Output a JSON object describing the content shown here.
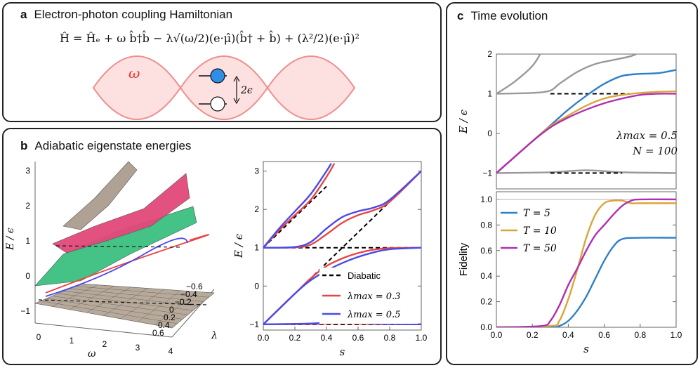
{
  "panel_a": {
    "letter": "a",
    "title": "Electron-photon coupling Hamiltonian",
    "equation": "Ĥ = Ĥₑ + ω b̂†b̂ − λ√(ω/2)(e·μ̂)(b̂† + b̂) + (λ²/2)(e·μ̂)²",
    "omega_label": "ω",
    "gap_label": "2ϵ",
    "colors": {
      "cavity_fill": "#fde0e0",
      "cavity_stroke": "#ee8f8f",
      "omega": "#e8322f",
      "excited": "#2f8fe6",
      "ground": "#ffffff"
    }
  },
  "panel_b": {
    "letter": "b",
    "title": "Adiabatic eigenstate energies",
    "surface_plot": {
      "zlabel": "E / ϵ",
      "xlabel": "ω",
      "ylabel": "λ",
      "z_ticks": [
        "3",
        "2",
        "1",
        "0",
        "−1"
      ],
      "x_ticks": [
        "0",
        "1",
        "2",
        "3",
        "4"
      ],
      "y_ticks": [
        "−0.6",
        "−0.4",
        "−0.2",
        "0",
        "0.2",
        "0.4",
        "0.6"
      ],
      "surface_colors": [
        "#b0a195",
        "#e2487a",
        "#3bbf7e",
        "#b8aa9b"
      ]
    },
    "legend": {
      "diabatic": "Diabatic",
      "lambda_03": "λmax = 0.3",
      "lambda_05": "λmax = 0.5"
    }
  },
  "panel_c": {
    "letter": "c",
    "title": "Time evolution",
    "annotation": {
      "lambda": "λmax = 0.5",
      "n": "N = 100"
    },
    "legend": {
      "t5": "T = 5",
      "t10": "T = 10",
      "t50": "T = 50"
    }
  },
  "chart_data": [
    {
      "id": "b-energies",
      "type": "line",
      "xlabel": "s",
      "ylabel": "E / ϵ",
      "xlim": [
        0,
        1
      ],
      "ylim": [
        -1.15,
        3.25
      ],
      "x_ticks": [
        0,
        0.2,
        0.4,
        0.6,
        0.8,
        1.0
      ],
      "y_ticks": [
        -1,
        0,
        1,
        2,
        3
      ],
      "series": [
        {
          "name": "Diabatic",
          "style": "dashed",
          "color": "#000000",
          "segments": [
            {
              "x": [
                0,
                1
              ],
              "y": [
                -1,
                3
              ]
            },
            {
              "x": [
                0,
                0.4
              ],
              "y": [
                1,
                2.6
              ]
            },
            {
              "x": [
                0,
                1
              ],
              "y": [
                1,
                1
              ]
            },
            {
              "x": [
                0,
                1
              ],
              "y": [
                -1,
                -1
              ]
            }
          ]
        },
        {
          "name": "λmax = 0.3",
          "color": "#e84545",
          "segments": [
            {
              "x": [
                0,
                0.2,
                0.3,
                0.4,
                0.5,
                0.6,
                0.7,
                0.8,
                1.0
              ],
              "y": [
                1,
                1.01,
                1.08,
                1.35,
                1.65,
                1.85,
                1.98,
                2.2,
                3.0
              ]
            },
            {
              "x": [
                0,
                0.2,
                0.3,
                0.4,
                0.5,
                0.6,
                0.7,
                0.8,
                1.0
              ],
              "y": [
                -1,
                -0.2,
                0.2,
                0.52,
                0.72,
                0.86,
                0.95,
                0.99,
                1.0
              ]
            },
            {
              "x": [
                0,
                0.1,
                0.2,
                0.3,
                0.4,
                0.45
              ],
              "y": [
                1,
                1.45,
                1.85,
                2.25,
                2.85,
                3.2
              ]
            },
            {
              "x": [
                0,
                0.3,
                0.5,
                0.7,
                1.0
              ],
              "y": [
                -1,
                -0.99,
                -0.97,
                -0.99,
                -1
              ]
            }
          ]
        },
        {
          "name": "λmax = 0.5",
          "color": "#4a4ae8",
          "segments": [
            {
              "x": [
                0,
                0.2,
                0.3,
                0.4,
                0.5,
                0.6,
                0.7,
                0.8,
                1.0
              ],
              "y": [
                1,
                1.02,
                1.15,
                1.5,
                1.8,
                1.95,
                2.05,
                2.25,
                3.0
              ]
            },
            {
              "x": [
                0,
                0.2,
                0.3,
                0.4,
                0.5,
                0.6,
                0.7,
                0.8,
                1.0
              ],
              "y": [
                -1,
                -0.2,
                0.15,
                0.4,
                0.6,
                0.76,
                0.88,
                0.96,
                1.0
              ]
            },
            {
              "x": [
                0,
                0.1,
                0.2,
                0.3,
                0.4,
                0.43
              ],
              "y": [
                1,
                1.5,
                1.95,
                2.4,
                3.0,
                3.2
              ]
            },
            {
              "x": [
                0,
                0.3,
                0.5,
                0.7,
                1.0
              ],
              "y": [
                -1,
                -0.98,
                -0.93,
                -0.98,
                -1
              ]
            }
          ]
        }
      ]
    },
    {
      "id": "c-energies",
      "type": "line",
      "ylabel": "E / ϵ",
      "xlim": [
        0,
        1
      ],
      "ylim": [
        -1.4,
        2
      ],
      "y_ticks": [
        -1,
        0,
        1,
        2
      ],
      "series": [
        {
          "name": "Eigenstates",
          "color": "#999999",
          "segments": [
            {
              "x": [
                0,
                0.1,
                0.2,
                0.25
              ],
              "y": [
                1,
                1.3,
                1.7,
                2.05
              ]
            },
            {
              "x": [
                0,
                0.2,
                0.3,
                0.35,
                0.45,
                0.55,
                0.65,
                0.75,
                0.8
              ],
              "y": [
                1,
                1.02,
                1.08,
                1.25,
                1.55,
                1.75,
                1.85,
                1.95,
                2.05
              ]
            },
            {
              "x": [
                0,
                0.3,
                0.5,
                0.7,
                1.0
              ],
              "y": [
                -1,
                -0.98,
                -0.93,
                -0.98,
                -1
              ]
            }
          ]
        },
        {
          "name": "Diabatic",
          "style": "dashed",
          "color": "#000000",
          "segments": [
            {
              "x": [
                0.3,
                0.75
              ],
              "y": [
                1,
                1
              ]
            },
            {
              "x": [
                0.3,
                0.7
              ],
              "y": [
                -1,
                -1
              ]
            }
          ]
        },
        {
          "name": "T = 5",
          "color": "#2f7fc9",
          "x": [
            0,
            0.2,
            0.3,
            0.4,
            0.5,
            0.6,
            0.7,
            0.8,
            0.9,
            1.0
          ],
          "y": [
            -1,
            -0.2,
            0.2,
            0.6,
            0.95,
            1.25,
            1.45,
            1.5,
            1.52,
            1.6
          ]
        },
        {
          "name": "T = 10",
          "color": "#d9a53a",
          "x": [
            0,
            0.2,
            0.3,
            0.4,
            0.5,
            0.6,
            0.7,
            0.8,
            0.9,
            1.0
          ],
          "y": [
            -1,
            -0.2,
            0.18,
            0.45,
            0.7,
            0.88,
            0.97,
            1.02,
            1.05,
            1.06
          ]
        },
        {
          "name": "T = 50",
          "color": "#b02fb0",
          "x": [
            0,
            0.2,
            0.3,
            0.4,
            0.5,
            0.6,
            0.7,
            0.8,
            0.9,
            1.0
          ],
          "y": [
            -1,
            -0.2,
            0.15,
            0.4,
            0.6,
            0.76,
            0.88,
            0.97,
            1.0,
            1.0
          ]
        }
      ]
    },
    {
      "id": "c-fidelity",
      "type": "line",
      "xlabel": "s",
      "ylabel": "Fidelity",
      "xlim": [
        0,
        1
      ],
      "ylim": [
        0,
        1.06
      ],
      "x_ticks": [
        0,
        0.2,
        0.4,
        0.6,
        0.8,
        1.0
      ],
      "y_ticks": [
        0,
        0.2,
        0.4,
        0.6,
        0.8,
        1.0
      ],
      "series": [
        {
          "name": "T = 5",
          "color": "#2f7fc9",
          "x": [
            0,
            0.3,
            0.35,
            0.4,
            0.45,
            0.5,
            0.55,
            0.6,
            0.65,
            0.7,
            0.8,
            1.0
          ],
          "y": [
            0,
            0,
            0.01,
            0.05,
            0.13,
            0.24,
            0.38,
            0.52,
            0.63,
            0.69,
            0.7,
            0.7
          ]
        },
        {
          "name": "T = 10",
          "color": "#d9a53a",
          "x": [
            0,
            0.3,
            0.35,
            0.4,
            0.45,
            0.5,
            0.55,
            0.6,
            0.65,
            0.7,
            0.75,
            0.8,
            1.0
          ],
          "y": [
            0,
            0.01,
            0.05,
            0.22,
            0.45,
            0.7,
            0.88,
            0.97,
            0.99,
            0.99,
            0.97,
            0.97,
            0.97
          ]
        },
        {
          "name": "T = 50",
          "color": "#b02fb0",
          "x": [
            0,
            0.25,
            0.3,
            0.35,
            0.4,
            0.45,
            0.5,
            0.55,
            0.6,
            0.65,
            0.7,
            0.75,
            0.8,
            1.0
          ],
          "y": [
            0,
            0.01,
            0.05,
            0.17,
            0.33,
            0.46,
            0.6,
            0.72,
            0.8,
            0.88,
            0.95,
            0.99,
            1.0,
            1.0
          ]
        }
      ]
    }
  ]
}
